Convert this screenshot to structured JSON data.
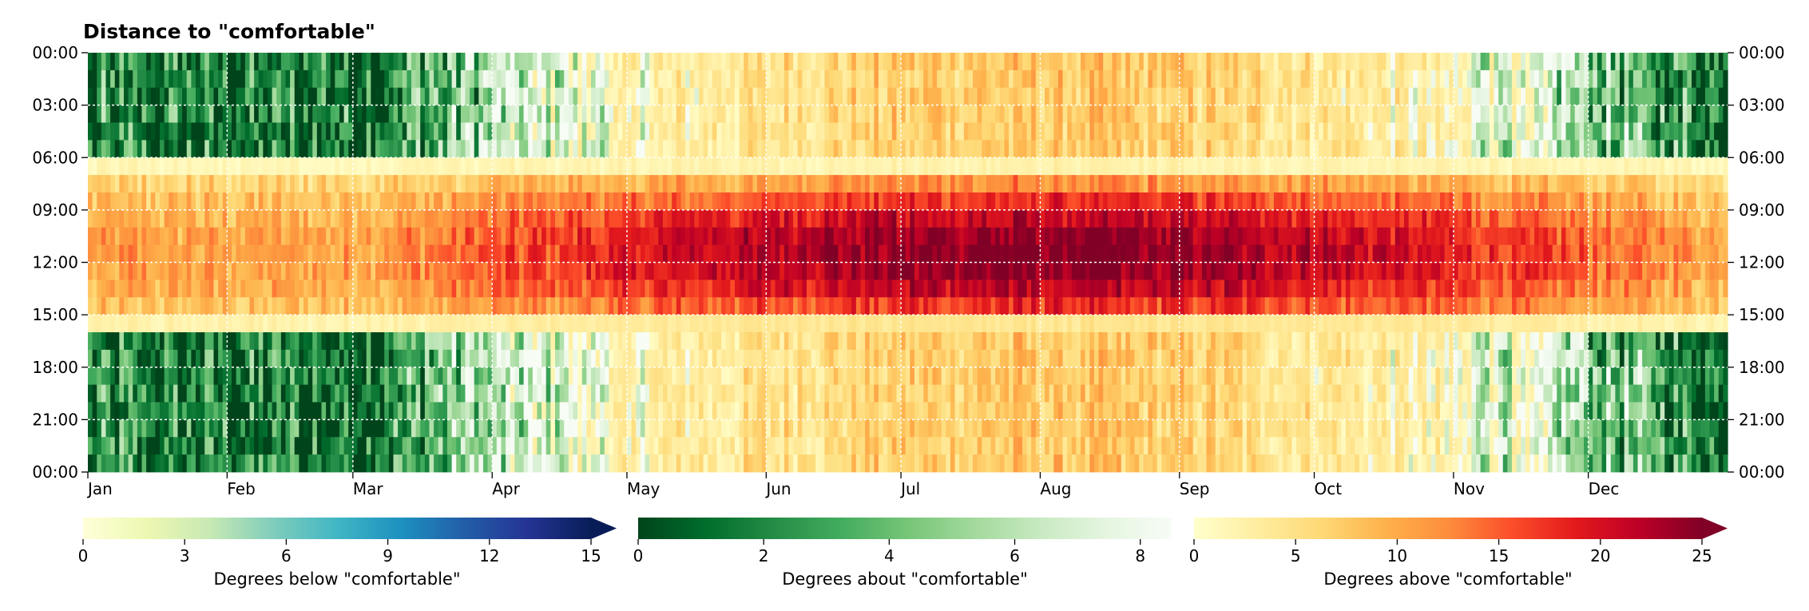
{
  "chart_data": {
    "type": "heatmap",
    "title": "Distance to \"comfortable\"",
    "x": {
      "kind": "day_of_year",
      "range": [
        1,
        365
      ],
      "tick_labels": [
        "Jan",
        "Feb",
        "Mar",
        "Apr",
        "May",
        "Jun",
        "Jul",
        "Aug",
        "Sep",
        "Oct",
        "Nov",
        "Dec"
      ],
      "tick_days": [
        1,
        32,
        60,
        91,
        121,
        152,
        182,
        213,
        244,
        274,
        305,
        335
      ]
    },
    "y": {
      "kind": "hour_of_day",
      "range": [
        0,
        24
      ],
      "tick_labels_left": [
        "00:00",
        "03:00",
        "06:00",
        "09:00",
        "12:00",
        "15:00",
        "18:00",
        "21:00",
        "00:00"
      ],
      "tick_labels_right": [
        "00:00",
        "03:00",
        "06:00",
        "09:00",
        "12:00",
        "15:00",
        "18:00",
        "21:00",
        "00:00"
      ],
      "tick_hours": [
        0,
        3,
        6,
        9,
        12,
        15,
        18,
        21,
        24
      ]
    },
    "grid": true,
    "approximate_pattern": {
      "above_comfortable": {
        "hours": [
          6,
          16
        ],
        "peak_value": 25,
        "peak_months": [
          "Jul",
          "Aug"
        ]
      },
      "about_comfortable": {
        "winter_night_hours": "0-6 and 15-24, Nov to Apr",
        "typical_value": 2
      }
    },
    "colorbars": [
      {
        "label": "Degrees below \"comfortable\"",
        "cmap": "YlGnBu",
        "range": [
          0,
          15
        ],
        "ticks": [
          "0",
          "3",
          "6",
          "9",
          "12",
          "15"
        ],
        "tick_values": [
          0,
          3,
          6,
          9,
          12,
          15
        ],
        "extend": "max",
        "colors": [
          "#ffffd9",
          "#edf8b1",
          "#c7e9b4",
          "#7fcdbb",
          "#41b6c4",
          "#1d91c0",
          "#225ea8",
          "#253494",
          "#081d58"
        ]
      },
      {
        "label": "Degrees about \"comfortable\"",
        "cmap": "Greens_r",
        "range": [
          0,
          8.5
        ],
        "ticks": [
          "0",
          "2",
          "4",
          "6",
          "8"
        ],
        "tick_values": [
          0,
          2,
          4,
          6,
          8
        ],
        "extend": "none",
        "colors": [
          "#00441b",
          "#006d2c",
          "#238b45",
          "#41ab5d",
          "#74c476",
          "#a1d99b",
          "#c7e9c0",
          "#e5f5e0",
          "#f7fcf5"
        ]
      },
      {
        "label": "Degrees above \"comfortable\"",
        "cmap": "YlOrRd",
        "range": [
          0,
          25
        ],
        "ticks": [
          "0",
          "5",
          "10",
          "15",
          "20",
          "25"
        ],
        "tick_values": [
          0,
          5,
          10,
          15,
          20,
          25
        ],
        "extend": "max",
        "colors": [
          "#ffffcc",
          "#ffeda0",
          "#fed976",
          "#feb24c",
          "#fd8d3c",
          "#fc4e2a",
          "#e31a1c",
          "#bd0026",
          "#800026"
        ]
      }
    ]
  }
}
